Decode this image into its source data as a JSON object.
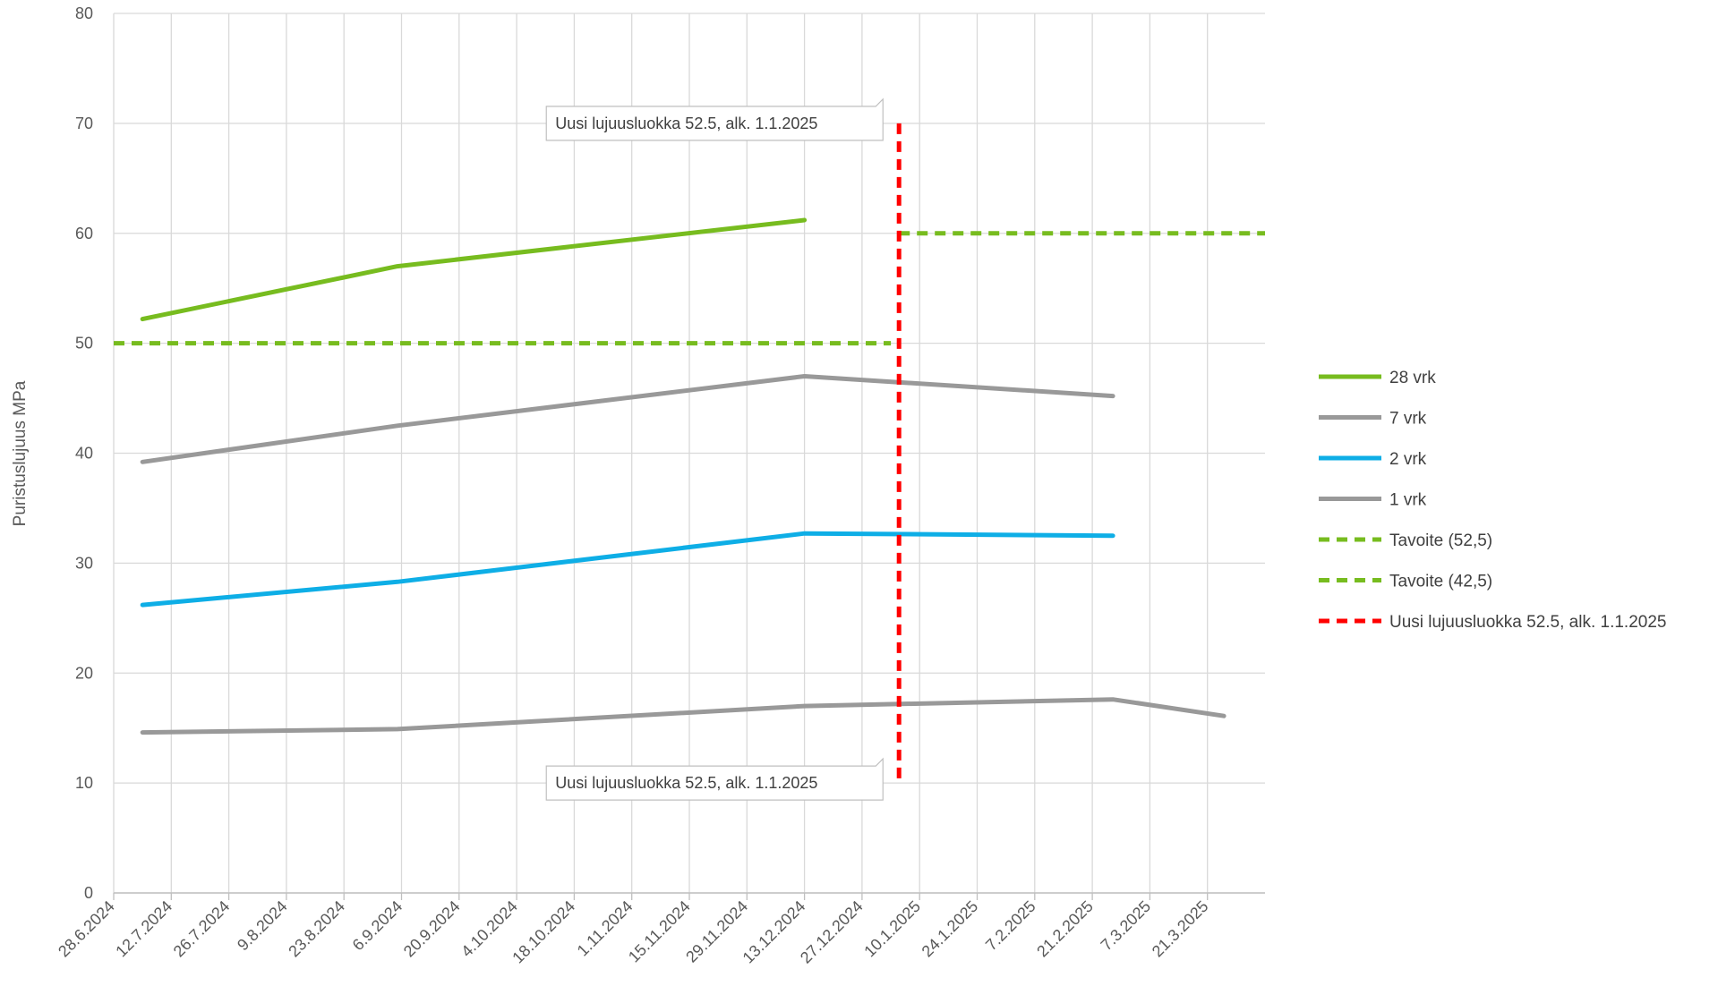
{
  "chart_data": {
    "type": "line",
    "ylabel": "Puristuslujuus MPa",
    "xlabel": "",
    "ylim": [
      0,
      80
    ],
    "yticks": [
      0,
      10,
      20,
      30,
      40,
      50,
      60,
      70,
      80
    ],
    "xlim": [
      "2024-06-28",
      "2025-04-04"
    ],
    "xtick_labels": [
      "28.6.2024",
      "12.7.2024",
      "26.7.2024",
      "9.8.2024",
      "23.8.2024",
      "6.9.2024",
      "20.9.2024",
      "4.10.2024",
      "18.10.2024",
      "1.11.2024",
      "15.11.2024",
      "29.11.2024",
      "13.12.2024",
      "27.12.2024",
      "10.1.2025",
      "24.1.2025",
      "7.2.2025",
      "21.2.2025",
      "7.3.2025",
      "21.3.2025"
    ],
    "grid": true,
    "legend_position": "right",
    "series": [
      {
        "name": "28 vrk",
        "color": "#77bc1f",
        "dash": false,
        "points": [
          [
            "2024-07-05",
            52.2
          ],
          [
            "2024-09-05",
            57.0
          ],
          [
            "2024-12-13",
            61.2
          ]
        ]
      },
      {
        "name": "7 vrk",
        "color": "#999999",
        "dash": false,
        "points": [
          [
            "2024-07-05",
            39.2
          ],
          [
            "2024-09-05",
            42.5
          ],
          [
            "2024-12-13",
            47.0
          ],
          [
            "2025-02-26",
            45.2
          ]
        ]
      },
      {
        "name": "2 vrk",
        "color": "#0eaee6",
        "dash": false,
        "points": [
          [
            "2024-07-05",
            26.2
          ],
          [
            "2024-09-05",
            28.3
          ],
          [
            "2024-12-13",
            32.7
          ],
          [
            "2025-02-26",
            32.5
          ]
        ]
      },
      {
        "name": "1 vrk",
        "color": "#999999",
        "dash": false,
        "points": [
          [
            "2024-07-05",
            14.6
          ],
          [
            "2024-09-05",
            14.9
          ],
          [
            "2024-12-13",
            17.0
          ],
          [
            "2025-02-26",
            17.6
          ],
          [
            "2025-03-25",
            16.1
          ]
        ]
      },
      {
        "name": "Tavoite (52,5)",
        "color": "#77bc1f",
        "dash": true,
        "points": [
          [
            "2025-01-05",
            60
          ],
          [
            "2025-04-04",
            60
          ]
        ]
      },
      {
        "name": "Tavoite (42,5)",
        "color": "#77bc1f",
        "dash": true,
        "points": [
          [
            "2024-06-28",
            50
          ],
          [
            "2025-01-03",
            50
          ]
        ]
      },
      {
        "name": "Uusi lujuusluokka 52.5, alk. 1.1.2025",
        "color": "#ff0000",
        "dash": true,
        "points": [
          [
            "2025-01-05",
            70
          ],
          [
            "2025-01-05",
            10
          ]
        ]
      }
    ],
    "annotations": [
      {
        "text": "Uusi lujuusluokka 52.5, alk. 1.1.2025",
        "anchor_date": "2025-01-05",
        "anchor_value": 70
      },
      {
        "text": "Uusi lujuusluokka 52.5, alk. 1.1.2025",
        "anchor_date": "2025-01-05",
        "anchor_value": 10
      }
    ]
  }
}
